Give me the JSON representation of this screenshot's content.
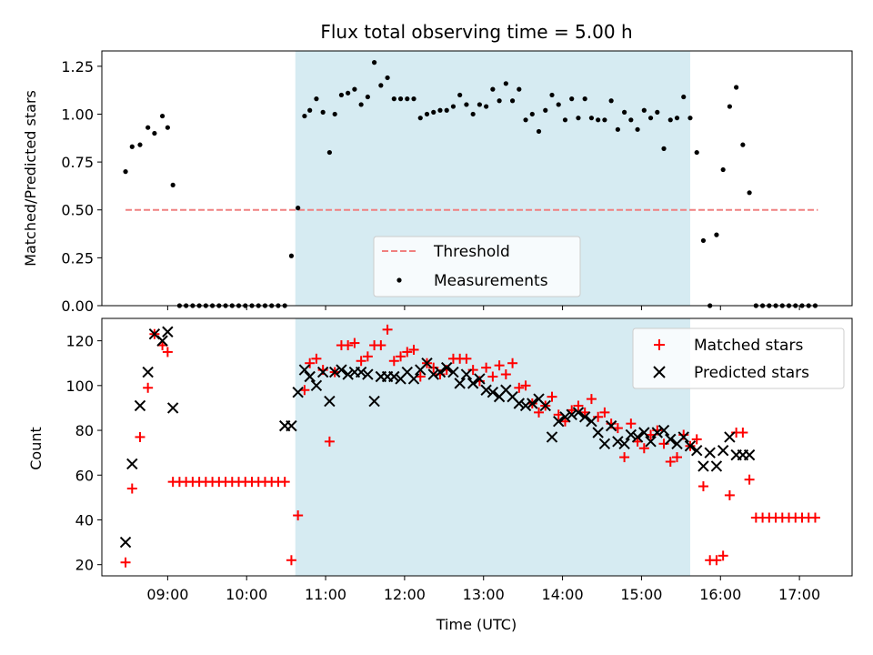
{
  "chart_data": [
    {
      "type": "scatter",
      "title": "Flux total observing time = 5.00 h",
      "xlabel": "",
      "ylabel": "Matched/Predicted stars",
      "ylim": [
        0,
        1.33
      ],
      "xlim": [
        "08:10",
        "17:40"
      ],
      "yticks": [
        "0.00",
        "0.25",
        "0.50",
        "0.75",
        "1.00",
        "1.25"
      ],
      "shaded_span": {
        "start": "10:37",
        "end": "15:37",
        "color": "#add8e6"
      },
      "legend": {
        "placement": "lower-center",
        "entries": [
          "Threshold",
          "Measurements"
        ]
      },
      "threshold": {
        "name": "Threshold",
        "y": 0.5,
        "x_start": "08:28",
        "x_end": "17:14",
        "color": "#f08080"
      },
      "series": [
        {
          "name": "Measurements",
          "color": "#000000",
          "x": [
            "08:28",
            "08:33",
            "08:39",
            "08:45",
            "08:50",
            "08:56",
            "09:00",
            "09:04",
            "09:09",
            "09:14",
            "09:19",
            "09:24",
            "09:29",
            "09:34",
            "09:39",
            "09:44",
            "09:49",
            "09:54",
            "09:59",
            "10:04",
            "10:09",
            "10:14",
            "10:19",
            "10:24",
            "10:29",
            "10:34",
            "10:39",
            "10:44",
            "10:48",
            "10:53",
            "10:58",
            "11:03",
            "11:07",
            "11:12",
            "11:17",
            "11:22",
            "11:27",
            "11:32",
            "11:37",
            "11:42",
            "11:47",
            "11:52",
            "11:57",
            "12:02",
            "12:07",
            "12:12",
            "12:17",
            "12:22",
            "12:27",
            "12:32",
            "12:37",
            "12:42",
            "12:47",
            "12:52",
            "12:57",
            "13:02",
            "13:07",
            "13:12",
            "13:17",
            "13:22",
            "13:27",
            "13:32",
            "13:37",
            "13:42",
            "13:47",
            "13:52",
            "13:57",
            "14:02",
            "14:07",
            "14:12",
            "14:17",
            "14:22",
            "14:27",
            "14:32",
            "14:37",
            "14:42",
            "14:47",
            "14:52",
            "14:57",
            "15:02",
            "15:07",
            "15:12",
            "15:17",
            "15:22",
            "15:27",
            "15:32",
            "15:37",
            "15:42",
            "15:47",
            "15:52",
            "15:57",
            "16:02",
            "16:07",
            "16:12",
            "16:17",
            "16:22",
            "16:27",
            "16:32",
            "16:37",
            "16:42",
            "16:47",
            "16:52",
            "16:57",
            "17:02",
            "17:07",
            "17:12"
          ],
          "y": [
            0.7,
            0.83,
            0.84,
            0.93,
            0.9,
            0.99,
            0.93,
            0.63,
            0.0,
            0.0,
            0.0,
            0.0,
            0.0,
            0.0,
            0.0,
            0.0,
            0.0,
            0.0,
            0.0,
            0.0,
            0.0,
            0.0,
            0.0,
            0.0,
            0.0,
            0.26,
            0.51,
            0.99,
            1.02,
            1.08,
            1.01,
            0.8,
            1.0,
            1.1,
            1.11,
            1.13,
            1.05,
            1.09,
            1.27,
            1.15,
            1.19,
            1.08,
            1.08,
            1.08,
            1.08,
            0.98,
            1.0,
            1.01,
            1.02,
            1.02,
            1.04,
            1.1,
            1.05,
            1.0,
            1.05,
            1.04,
            1.13,
            1.07,
            1.16,
            1.07,
            1.13,
            0.97,
            1.0,
            0.91,
            1.02,
            1.1,
            1.05,
            0.97,
            1.08,
            0.98,
            1.08,
            0.98,
            0.97,
            0.97,
            1.07,
            0.92,
            1.01,
            0.97,
            0.92,
            1.02,
            0.98,
            1.01,
            0.82,
            0.97,
            0.98,
            1.09,
            0.98,
            0.8,
            0.34,
            0.0,
            0.37,
            0.71,
            1.04,
            1.14,
            0.84,
            0.59,
            0.0,
            0.0,
            0.0,
            0.0,
            0.0,
            0.0,
            0.0,
            0.0,
            0.0,
            0.0
          ]
        }
      ]
    },
    {
      "type": "scatter",
      "title": "",
      "xlabel": "Time (UTC)",
      "ylabel": "Count",
      "ylim": [
        15,
        130
      ],
      "xlim": [
        "08:10",
        "17:40"
      ],
      "yticks": [
        "20",
        "40",
        "60",
        "80",
        "100",
        "120"
      ],
      "xticks": [
        "09:00",
        "10:00",
        "11:00",
        "12:00",
        "13:00",
        "14:00",
        "15:00",
        "16:00",
        "17:00"
      ],
      "shaded_span": {
        "start": "10:37",
        "end": "15:37",
        "color": "#add8e6"
      },
      "legend": {
        "placement": "upper-right",
        "entries": [
          "Matched stars",
          "Predicted stars"
        ]
      },
      "series": [
        {
          "name": "Matched stars",
          "marker": "plus",
          "color": "#ff0000",
          "x": [
            "08:28",
            "08:33",
            "08:39",
            "08:45",
            "08:50",
            "08:56",
            "09:00",
            "09:04",
            "09:09",
            "09:14",
            "09:19",
            "09:24",
            "09:29",
            "09:34",
            "09:39",
            "09:44",
            "09:49",
            "09:54",
            "09:59",
            "10:04",
            "10:09",
            "10:14",
            "10:19",
            "10:24",
            "10:29",
            "10:34",
            "10:39",
            "10:44",
            "10:48",
            "10:53",
            "10:58",
            "11:03",
            "11:07",
            "11:12",
            "11:17",
            "11:22",
            "11:27",
            "11:32",
            "11:37",
            "11:42",
            "11:47",
            "11:52",
            "11:57",
            "12:02",
            "12:07",
            "12:12",
            "12:17",
            "12:22",
            "12:27",
            "12:32",
            "12:37",
            "12:42",
            "12:47",
            "12:52",
            "12:57",
            "13:02",
            "13:07",
            "13:12",
            "13:17",
            "13:22",
            "13:27",
            "13:32",
            "13:37",
            "13:42",
            "13:47",
            "13:52",
            "13:57",
            "14:02",
            "14:07",
            "14:12",
            "14:17",
            "14:22",
            "14:27",
            "14:32",
            "14:37",
            "14:42",
            "14:47",
            "14:52",
            "14:57",
            "15:02",
            "15:07",
            "15:12",
            "15:17",
            "15:22",
            "15:27",
            "15:32",
            "15:37",
            "15:42",
            "15:47",
            "15:52",
            "15:57",
            "16:02",
            "16:07",
            "16:12",
            "16:17",
            "16:22",
            "16:27",
            "16:32",
            "16:37",
            "16:42",
            "16:47",
            "16:52",
            "16:57",
            "17:02",
            "17:07",
            "17:12"
          ],
          "y": [
            21,
            54,
            77,
            99,
            123,
            118,
            115,
            57,
            57,
            57,
            57,
            57,
            57,
            57,
            57,
            57,
            57,
            57,
            57,
            57,
            57,
            57,
            57,
            57,
            57,
            22,
            42,
            98,
            110,
            112,
            107,
            75,
            106,
            118,
            118,
            119,
            111,
            113,
            118,
            118,
            125,
            111,
            113,
            115,
            116,
            104,
            110,
            108,
            105,
            107,
            112,
            112,
            112,
            107,
            102,
            108,
            104,
            109,
            105,
            110,
            99,
            100,
            92,
            88,
            91,
            95,
            87,
            84,
            89,
            91,
            88,
            94,
            86,
            88,
            83,
            81,
            68,
            83,
            75,
            72,
            78,
            80,
            74,
            66,
            68,
            78,
            73,
            76,
            55,
            22,
            22,
            24,
            51,
            79,
            79,
            58,
            41,
            41,
            41,
            41,
            41,
            41,
            41,
            41,
            41,
            41
          ]
        },
        {
          "name": "Predicted stars",
          "marker": "x",
          "color": "#000000",
          "x": [
            "08:28",
            "08:33",
            "08:39",
            "08:45",
            "08:50",
            "08:56",
            "09:00",
            "09:04",
            "10:29",
            "10:34",
            "10:39",
            "10:44",
            "10:48",
            "10:53",
            "10:58",
            "11:03",
            "11:07",
            "11:12",
            "11:17",
            "11:22",
            "11:27",
            "11:32",
            "11:37",
            "11:42",
            "11:47",
            "11:52",
            "11:57",
            "12:02",
            "12:07",
            "12:12",
            "12:17",
            "12:22",
            "12:27",
            "12:32",
            "12:37",
            "12:42",
            "12:47",
            "12:52",
            "12:57",
            "13:02",
            "13:07",
            "13:12",
            "13:17",
            "13:22",
            "13:27",
            "13:32",
            "13:37",
            "13:42",
            "13:47",
            "13:52",
            "13:57",
            "14:02",
            "14:07",
            "14:12",
            "14:17",
            "14:22",
            "14:27",
            "14:32",
            "14:37",
            "14:42",
            "14:47",
            "14:52",
            "14:57",
            "15:02",
            "15:07",
            "15:12",
            "15:17",
            "15:22",
            "15:27",
            "15:32",
            "15:37",
            "15:42",
            "15:47",
            "15:52",
            "15:57",
            "16:02",
            "16:07",
            "16:12",
            "16:17",
            "16:22"
          ],
          "y": [
            30,
            65,
            91,
            106,
            123,
            120,
            124,
            90,
            82,
            82,
            97,
            107,
            104,
            100,
            106,
            93,
            106,
            107,
            105,
            106,
            106,
            105,
            93,
            104,
            104,
            104,
            103,
            106,
            103,
            107,
            110,
            105,
            106,
            108,
            106,
            101,
            105,
            101,
            103,
            98,
            97,
            95,
            98,
            95,
            92,
            91,
            92,
            94,
            91,
            77,
            84,
            86,
            87,
            88,
            86,
            84,
            79,
            74,
            82,
            75,
            74,
            78,
            77,
            79,
            75,
            79,
            80,
            76,
            74,
            77,
            73,
            71,
            64,
            70,
            64,
            71,
            77,
            69,
            69,
            69
          ]
        }
      ]
    }
  ]
}
